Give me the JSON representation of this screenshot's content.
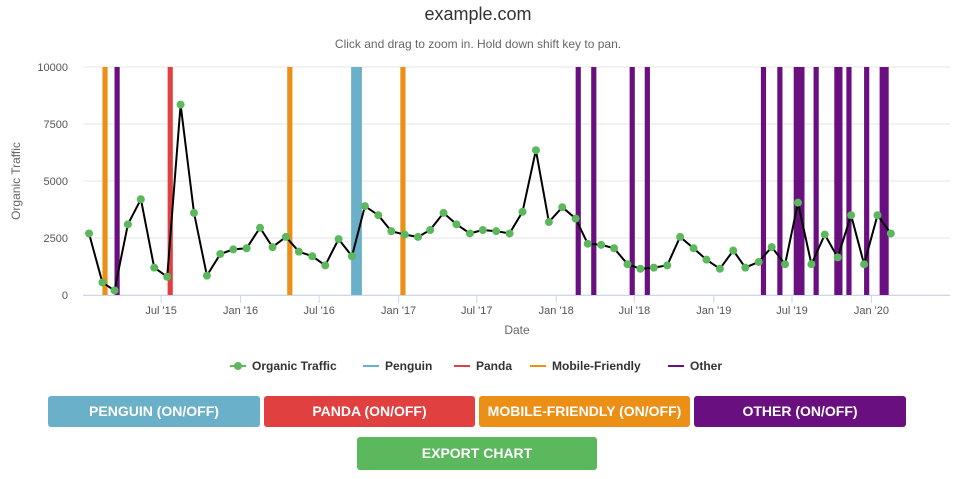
{
  "colors": {
    "organic": "#5cb85c",
    "line": "#000000",
    "penguin": "#6ab0c9",
    "panda": "#e04040",
    "mobile": "#eb8f16",
    "other": "#6a0f7f",
    "export": "#5cb85c"
  },
  "buttons": {
    "penguin": "PENGUIN (ON/OFF)",
    "panda": "PANDA (ON/OFF)",
    "mobile": "MOBILE-FRIENDLY (ON/OFF)",
    "other": "OTHER (ON/OFF)",
    "export": "EXPORT CHART"
  },
  "chart_data": {
    "type": "line",
    "title": "example.com",
    "subtitle": "Click and drag to zoom in. Hold down shift key to pan.",
    "xlabel": "Date",
    "ylabel": "Organic Traffic",
    "xlim": [
      "2015-01-01",
      "2020-07-01"
    ],
    "ylim": [
      0,
      10000
    ],
    "grid": true,
    "legend_position": "bottom",
    "y_ticks": [
      "0",
      "2500",
      "5000",
      "7500",
      "10000"
    ],
    "x_ticks": [
      {
        "date": "2015-07-01",
        "label": "Jul '15"
      },
      {
        "date": "2016-01-01",
        "label": "Jan '16"
      },
      {
        "date": "2016-07-01",
        "label": "Jul '16"
      },
      {
        "date": "2017-01-01",
        "label": "Jan '17"
      },
      {
        "date": "2017-07-01",
        "label": "Jul '17"
      },
      {
        "date": "2018-01-01",
        "label": "Jan '18"
      },
      {
        "date": "2018-07-01",
        "label": "Jul '18"
      },
      {
        "date": "2019-01-01",
        "label": "Jan '19"
      },
      {
        "date": "2019-07-01",
        "label": "Jul '19"
      },
      {
        "date": "2020-01-01",
        "label": "Jan '20"
      }
    ],
    "legend": [
      {
        "key": "organic",
        "label": "Organic Traffic"
      },
      {
        "key": "penguin",
        "label": "Penguin"
      },
      {
        "key": "panda",
        "label": "Panda"
      },
      {
        "key": "mobile",
        "label": "Mobile-Friendly"
      },
      {
        "key": "other",
        "label": "Other"
      }
    ],
    "series": [
      {
        "name": "Organic Traffic",
        "points": [
          [
            "2015-01-15",
            2700
          ],
          [
            "2015-02-15",
            550
          ],
          [
            "2015-03-15",
            200
          ],
          [
            "2015-04-15",
            3100
          ],
          [
            "2015-05-15",
            4200
          ],
          [
            "2015-06-15",
            1200
          ],
          [
            "2015-07-15",
            800
          ],
          [
            "2015-08-15",
            8350
          ],
          [
            "2015-09-15",
            3600
          ],
          [
            "2015-10-15",
            850
          ],
          [
            "2015-11-15",
            1800
          ],
          [
            "2015-12-15",
            2000
          ],
          [
            "2016-01-15",
            2050
          ],
          [
            "2016-02-15",
            2950
          ],
          [
            "2016-03-15",
            2100
          ],
          [
            "2016-04-15",
            2550
          ],
          [
            "2016-05-15",
            1900
          ],
          [
            "2016-06-15",
            1700
          ],
          [
            "2016-07-15",
            1300
          ],
          [
            "2016-08-15",
            2450
          ],
          [
            "2016-09-15",
            1700
          ],
          [
            "2016-10-15",
            3900
          ],
          [
            "2016-11-15",
            3500
          ],
          [
            "2016-12-15",
            2800
          ],
          [
            "2017-01-15",
            2650
          ],
          [
            "2017-02-15",
            2550
          ],
          [
            "2017-03-15",
            2850
          ],
          [
            "2017-04-15",
            3600
          ],
          [
            "2017-05-15",
            3100
          ],
          [
            "2017-06-15",
            2700
          ],
          [
            "2017-07-15",
            2850
          ],
          [
            "2017-08-15",
            2800
          ],
          [
            "2017-09-15",
            2700
          ],
          [
            "2017-10-15",
            3650
          ],
          [
            "2017-11-15",
            6350
          ],
          [
            "2017-12-15",
            3200
          ],
          [
            "2018-01-15",
            3850
          ],
          [
            "2018-02-15",
            3350
          ],
          [
            "2018-03-15",
            2250
          ],
          [
            "2018-04-15",
            2200
          ],
          [
            "2018-05-15",
            2050
          ],
          [
            "2018-06-15",
            1350
          ],
          [
            "2018-07-15",
            1150
          ],
          [
            "2018-08-15",
            1200
          ],
          [
            "2018-09-15",
            1300
          ],
          [
            "2018-10-15",
            2550
          ],
          [
            "2018-11-15",
            2050
          ],
          [
            "2018-12-15",
            1550
          ],
          [
            "2019-01-15",
            1150
          ],
          [
            "2019-02-15",
            1950
          ],
          [
            "2019-03-15",
            1200
          ],
          [
            "2019-04-15",
            1450
          ],
          [
            "2019-05-15",
            2100
          ],
          [
            "2019-06-15",
            1350
          ],
          [
            "2019-07-15",
            4050
          ],
          [
            "2019-08-15",
            1350
          ],
          [
            "2019-09-15",
            2650
          ],
          [
            "2019-10-15",
            1650
          ],
          [
            "2019-11-15",
            3500
          ],
          [
            "2019-12-15",
            1350
          ],
          [
            "2020-01-15",
            3500
          ],
          [
            "2020-02-15",
            2700
          ]
        ]
      }
    ],
    "bands": [
      {
        "type": "mobile",
        "from": "2015-02-15",
        "to": "2015-02-27"
      },
      {
        "type": "other",
        "from": "2015-03-15",
        "to": "2015-03-27"
      },
      {
        "type": "panda",
        "from": "2015-07-16",
        "to": "2015-07-28"
      },
      {
        "type": "mobile",
        "from": "2016-04-18",
        "to": "2016-04-30"
      },
      {
        "type": "penguin",
        "from": "2016-09-13",
        "to": "2016-10-08"
      },
      {
        "type": "mobile",
        "from": "2017-01-05",
        "to": "2017-01-17"
      },
      {
        "type": "other",
        "from": "2018-02-15",
        "to": "2018-02-27"
      },
      {
        "type": "other",
        "from": "2018-03-23",
        "to": "2018-04-04"
      },
      {
        "type": "other",
        "from": "2018-06-20",
        "to": "2018-07-02"
      },
      {
        "type": "other",
        "from": "2018-07-25",
        "to": "2018-08-06"
      },
      {
        "type": "other",
        "from": "2019-04-20",
        "to": "2019-05-02"
      },
      {
        "type": "other",
        "from": "2019-05-28",
        "to": "2019-06-09"
      },
      {
        "type": "other",
        "from": "2019-07-05",
        "to": "2019-07-30"
      },
      {
        "type": "other",
        "from": "2019-08-20",
        "to": "2019-09-01"
      },
      {
        "type": "other",
        "from": "2019-10-07",
        "to": "2019-10-26"
      },
      {
        "type": "other",
        "from": "2019-11-04",
        "to": "2019-11-16"
      },
      {
        "type": "other",
        "from": "2019-12-15",
        "to": "2019-12-27"
      },
      {
        "type": "other",
        "from": "2020-01-20",
        "to": "2020-02-10"
      }
    ]
  }
}
